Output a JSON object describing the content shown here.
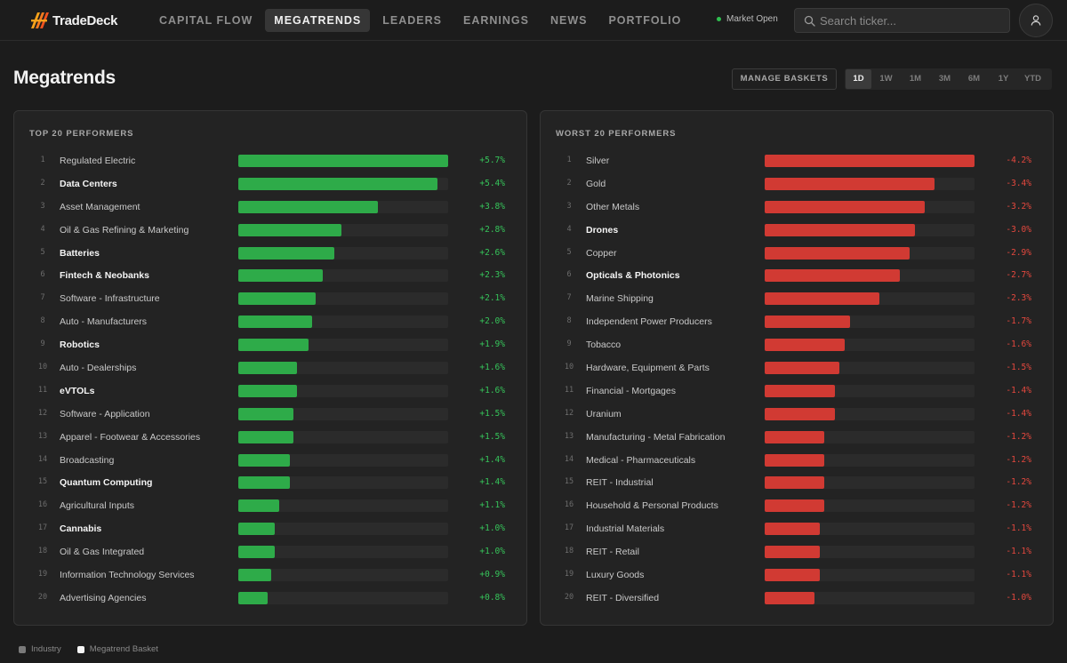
{
  "app": {
    "name": "TradeDeck"
  },
  "nav": {
    "items": [
      {
        "label": "CAPITAL FLOW",
        "active": false
      },
      {
        "label": "MEGATRENDS",
        "active": true
      },
      {
        "label": "LEADERS",
        "active": false
      },
      {
        "label": "EARNINGS",
        "active": false
      },
      {
        "label": "NEWS",
        "active": false
      },
      {
        "label": "PORTFOLIO",
        "active": false
      }
    ]
  },
  "market": {
    "status": "Market Open",
    "status_color": "#2fbf4f"
  },
  "search": {
    "placeholder": "Search ticker..."
  },
  "page": {
    "title": "Megatrends",
    "manage_label": "MANAGE BASKETS"
  },
  "periods": {
    "options": [
      "1D",
      "1W",
      "1M",
      "3M",
      "6M",
      "1Y",
      "YTD"
    ],
    "selected": "1D"
  },
  "colors": {
    "positive": "#2eab49",
    "negative": "#d13a33",
    "industry": "#7a7a7a",
    "basket": "#f5f5f5"
  },
  "top": {
    "title": "TOP 20 PERFORMERS",
    "max_abs_pct": 5.7,
    "rows": [
      {
        "rank": "1",
        "name": "Regulated Electric",
        "type": "industry",
        "pct": 5.7,
        "label": "+5.7%"
      },
      {
        "rank": "2",
        "name": "Data Centers",
        "type": "basket",
        "pct": 5.4,
        "label": "+5.4%"
      },
      {
        "rank": "3",
        "name": "Asset Management",
        "type": "industry",
        "pct": 3.8,
        "label": "+3.8%"
      },
      {
        "rank": "4",
        "name": "Oil & Gas Refining & Marketing",
        "type": "industry",
        "pct": 2.8,
        "label": "+2.8%"
      },
      {
        "rank": "5",
        "name": "Batteries",
        "type": "basket",
        "pct": 2.6,
        "label": "+2.6%"
      },
      {
        "rank": "6",
        "name": "Fintech & Neobanks",
        "type": "basket",
        "pct": 2.3,
        "label": "+2.3%"
      },
      {
        "rank": "7",
        "name": "Software - Infrastructure",
        "type": "industry",
        "pct": 2.1,
        "label": "+2.1%"
      },
      {
        "rank": "8",
        "name": "Auto - Manufacturers",
        "type": "industry",
        "pct": 2.0,
        "label": "+2.0%"
      },
      {
        "rank": "9",
        "name": "Robotics",
        "type": "basket",
        "pct": 1.9,
        "label": "+1.9%"
      },
      {
        "rank": "10",
        "name": "Auto - Dealerships",
        "type": "industry",
        "pct": 1.6,
        "label": "+1.6%"
      },
      {
        "rank": "11",
        "name": "eVTOLs",
        "type": "basket",
        "pct": 1.6,
        "label": "+1.6%"
      },
      {
        "rank": "12",
        "name": "Software - Application",
        "type": "industry",
        "pct": 1.5,
        "label": "+1.5%"
      },
      {
        "rank": "13",
        "name": "Apparel - Footwear & Accessories",
        "type": "industry",
        "pct": 1.5,
        "label": "+1.5%"
      },
      {
        "rank": "14",
        "name": "Broadcasting",
        "type": "industry",
        "pct": 1.4,
        "label": "+1.4%"
      },
      {
        "rank": "15",
        "name": "Quantum Computing",
        "type": "basket",
        "pct": 1.4,
        "label": "+1.4%"
      },
      {
        "rank": "16",
        "name": "Agricultural Inputs",
        "type": "industry",
        "pct": 1.1,
        "label": "+1.1%"
      },
      {
        "rank": "17",
        "name": "Cannabis",
        "type": "basket",
        "pct": 1.0,
        "label": "+1.0%"
      },
      {
        "rank": "18",
        "name": "Oil & Gas Integrated",
        "type": "industry",
        "pct": 1.0,
        "label": "+1.0%"
      },
      {
        "rank": "19",
        "name": "Information Technology Services",
        "type": "industry",
        "pct": 0.9,
        "label": "+0.9%"
      },
      {
        "rank": "20",
        "name": "Advertising Agencies",
        "type": "industry",
        "pct": 0.8,
        "label": "+0.8%"
      }
    ]
  },
  "worst": {
    "title": "WORST 20 PERFORMERS",
    "max_abs_pct": 4.2,
    "rows": [
      {
        "rank": "1",
        "name": "Silver",
        "type": "industry",
        "pct": -4.2,
        "label": "-4.2%"
      },
      {
        "rank": "2",
        "name": "Gold",
        "type": "industry",
        "pct": -3.4,
        "label": "-3.4%"
      },
      {
        "rank": "3",
        "name": "Other Metals",
        "type": "industry",
        "pct": -3.2,
        "label": "-3.2%"
      },
      {
        "rank": "4",
        "name": "Drones",
        "type": "basket",
        "pct": -3.0,
        "label": "-3.0%"
      },
      {
        "rank": "5",
        "name": "Copper",
        "type": "industry",
        "pct": -2.9,
        "label": "-2.9%"
      },
      {
        "rank": "6",
        "name": "Opticals & Photonics",
        "type": "basket",
        "pct": -2.7,
        "label": "-2.7%"
      },
      {
        "rank": "7",
        "name": "Marine Shipping",
        "type": "industry",
        "pct": -2.3,
        "label": "-2.3%"
      },
      {
        "rank": "8",
        "name": "Independent Power Producers",
        "type": "industry",
        "pct": -1.7,
        "label": "-1.7%"
      },
      {
        "rank": "9",
        "name": "Tobacco",
        "type": "industry",
        "pct": -1.6,
        "label": "-1.6%"
      },
      {
        "rank": "10",
        "name": "Hardware, Equipment & Parts",
        "type": "industry",
        "pct": -1.5,
        "label": "-1.5%"
      },
      {
        "rank": "11",
        "name": "Financial - Mortgages",
        "type": "industry",
        "pct": -1.4,
        "label": "-1.4%"
      },
      {
        "rank": "12",
        "name": "Uranium",
        "type": "industry",
        "pct": -1.4,
        "label": "-1.4%"
      },
      {
        "rank": "13",
        "name": "Manufacturing - Metal Fabrication",
        "type": "industry",
        "pct": -1.2,
        "label": "-1.2%"
      },
      {
        "rank": "14",
        "name": "Medical - Pharmaceuticals",
        "type": "industry",
        "pct": -1.2,
        "label": "-1.2%"
      },
      {
        "rank": "15",
        "name": "REIT - Industrial",
        "type": "industry",
        "pct": -1.2,
        "label": "-1.2%"
      },
      {
        "rank": "16",
        "name": "Household & Personal Products",
        "type": "industry",
        "pct": -1.2,
        "label": "-1.2%"
      },
      {
        "rank": "17",
        "name": "Industrial Materials",
        "type": "industry",
        "pct": -1.1,
        "label": "-1.1%"
      },
      {
        "rank": "18",
        "name": "REIT - Retail",
        "type": "industry",
        "pct": -1.1,
        "label": "-1.1%"
      },
      {
        "rank": "19",
        "name": "Luxury Goods",
        "type": "industry",
        "pct": -1.1,
        "label": "-1.1%"
      },
      {
        "rank": "20",
        "name": "REIT - Diversified",
        "type": "industry",
        "pct": -1.0,
        "label": "-1.0%"
      }
    ]
  },
  "legend": {
    "industry_label": "Industry",
    "basket_label": "Megatrend Basket"
  },
  "icons": {
    "logo": "tradedeck-logo-icon",
    "search": "search-icon",
    "user": "user-icon"
  }
}
